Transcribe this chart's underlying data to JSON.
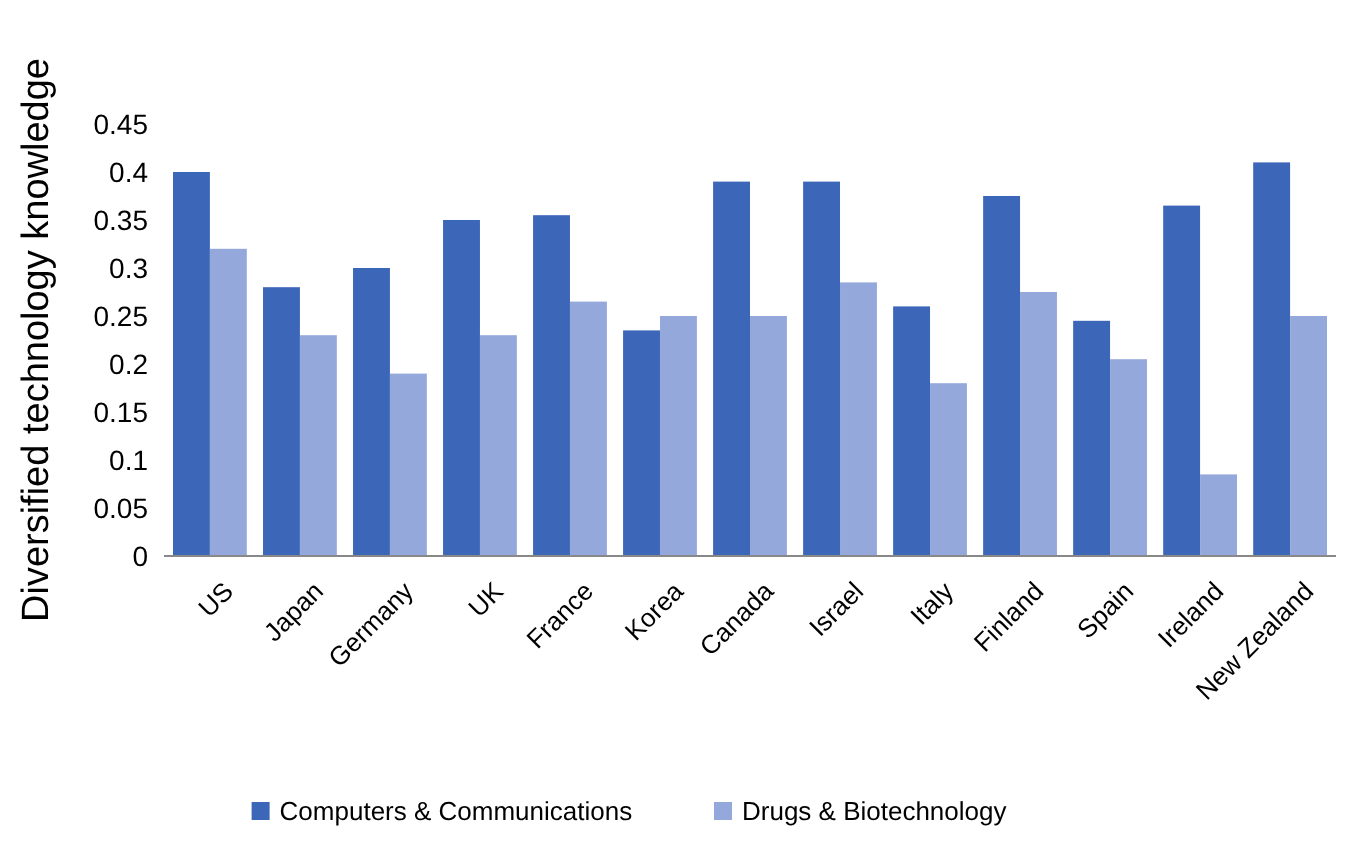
{
  "chart_data": {
    "type": "bar",
    "ylabel": "Diversified technology knowledge",
    "categories": [
      "US",
      "Japan",
      "Germany",
      "UK",
      "France",
      "Korea",
      "Canada",
      "Israel",
      "Italy",
      "Finland",
      "Spain",
      "Ireland",
      "New Zealand"
    ],
    "series": [
      {
        "name": "Computers & Communications",
        "color": "#3c67b9",
        "values": [
          0.4,
          0.28,
          0.3,
          0.35,
          0.355,
          0.235,
          0.39,
          0.39,
          0.26,
          0.375,
          0.245,
          0.365,
          0.41
        ]
      },
      {
        "name": "Drugs & Biotechnology",
        "color": "#95a8dc",
        "values": [
          0.32,
          0.23,
          0.19,
          0.23,
          0.265,
          0.25,
          0.25,
          0.285,
          0.18,
          0.275,
          0.205,
          0.085,
          0.25
        ]
      }
    ],
    "ylim": [
      0,
      0.45
    ],
    "yticks": [
      0,
      0.05,
      0.1,
      0.15,
      0.2,
      0.25,
      0.3,
      0.35,
      0.4,
      0.45
    ],
    "legend": "bottom",
    "grid": false
  }
}
